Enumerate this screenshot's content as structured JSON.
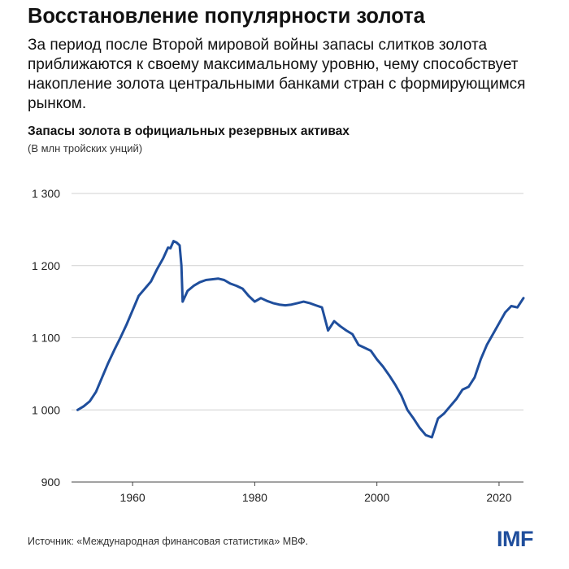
{
  "header": {
    "title": "Восстановление популярности золота",
    "subtitle": "За период после Второй мировой войны запасы слитков золота приближаются к своему максимальному уровню, чему способствует накопление золота центральными банками стран с формирующимся рынком."
  },
  "footer": {
    "source": "Источник: «Международная финансовая статистика» МВФ.",
    "logo_text": "IMF"
  },
  "chart_data": {
    "type": "line",
    "title": "Запасы золота в официальных резервных активах",
    "subtitle": "(В млн тройских унций)",
    "xlabel": "",
    "ylabel": "",
    "xlim": [
      1950,
      2024
    ],
    "ylim": [
      900,
      1300
    ],
    "x_ticks": [
      1960,
      1980,
      2000,
      2020
    ],
    "x_tick_labels": [
      "1960",
      "1980",
      "2000",
      "2020"
    ],
    "y_ticks": [
      900,
      1000,
      1100,
      1200,
      1300
    ],
    "y_tick_labels": [
      "900",
      "1 000",
      "1 100",
      "1 200",
      "1 300"
    ],
    "grid": "horizontal",
    "line_color": "#1f4e9c",
    "series": [
      {
        "name": "",
        "x": [
          1951,
          1952,
          1953,
          1954,
          1955,
          1956,
          1957,
          1958,
          1959,
          1960,
          1961,
          1961.7,
          1962,
          1963,
          1964,
          1965,
          1965.8,
          1966.2,
          1966.7,
          1967.2,
          1967.7,
          1968,
          1968.2,
          1969,
          1970,
          1971,
          1972,
          1973,
          1974,
          1975,
          1976,
          1977,
          1978,
          1979,
          1980,
          1981,
          1982,
          1983,
          1984,
          1985,
          1986,
          1987,
          1988,
          1989,
          1990,
          1991,
          1992,
          1993,
          1994,
          1995,
          1996,
          1997,
          1998,
          1999,
          2000,
          2001,
          2002,
          2003,
          2004,
          2005,
          2006,
          2007,
          2008,
          2009,
          2009.5,
          2010,
          2011,
          2012,
          2013,
          2014,
          2015,
          2016,
          2017,
          2018,
          2019,
          2020,
          2021,
          2022,
          2023,
          2024
        ],
        "values": [
          1000,
          1005,
          1012,
          1025,
          1045,
          1065,
          1083,
          1100,
          1118,
          1138,
          1158,
          1165,
          1168,
          1178,
          1195,
          1210,
          1225,
          1224,
          1234,
          1232,
          1228,
          1200,
          1150,
          1165,
          1172,
          1177,
          1180,
          1181,
          1182,
          1180,
          1175,
          1172,
          1168,
          1158,
          1150,
          1155,
          1151,
          1148,
          1146,
          1145,
          1146,
          1148,
          1150,
          1148,
          1145,
          1142,
          1110,
          1123,
          1116,
          1110,
          1105,
          1090,
          1086,
          1082,
          1070,
          1060,
          1048,
          1035,
          1020,
          1000,
          988,
          975,
          965,
          962,
          975,
          988,
          995,
          1005,
          1015,
          1028,
          1032,
          1045,
          1070,
          1090,
          1105,
          1120,
          1135,
          1144,
          1142,
          1155
        ]
      }
    ]
  }
}
